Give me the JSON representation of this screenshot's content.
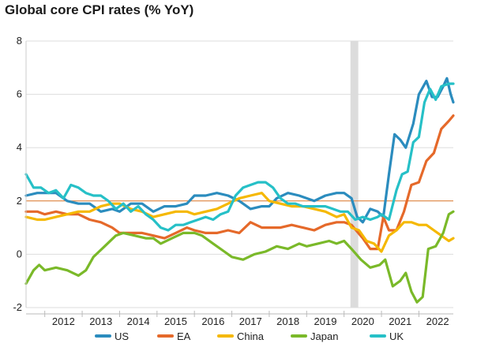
{
  "chart_data": {
    "type": "line",
    "title": "Global core CPI rates (% YoY)",
    "xlabel": "",
    "ylabel": "",
    "ylim": [
      -2,
      8
    ],
    "xlim": [
      2011.5,
      2022.92
    ],
    "y_ticks": [
      -2,
      0,
      2,
      4,
      6,
      8
    ],
    "x_tick_labels": [
      "2012",
      "2013",
      "2014",
      "2015",
      "2016",
      "2017",
      "2018",
      "2019",
      "2020",
      "2021",
      "2022"
    ],
    "reference_line": {
      "y": 2,
      "color": "#e07a2e"
    },
    "shaded_period": {
      "start": 2020.17,
      "end": 2020.38,
      "color": "#dcdcdc"
    },
    "legend_position": "bottom",
    "series": [
      {
        "name": "US",
        "color": "#2b8cbe",
        "points": [
          [
            2011.5,
            2.2
          ],
          [
            2011.8,
            2.3
          ],
          [
            2012.0,
            2.3
          ],
          [
            2012.3,
            2.3
          ],
          [
            2012.6,
            2.0
          ],
          [
            2012.9,
            1.9
          ],
          [
            2013.2,
            1.9
          ],
          [
            2013.5,
            1.6
          ],
          [
            2013.8,
            1.7
          ],
          [
            2014.0,
            1.6
          ],
          [
            2014.3,
            1.9
          ],
          [
            2014.6,
            1.9
          ],
          [
            2014.9,
            1.6
          ],
          [
            2015.2,
            1.8
          ],
          [
            2015.5,
            1.8
          ],
          [
            2015.8,
            1.9
          ],
          [
            2016.0,
            2.2
          ],
          [
            2016.3,
            2.2
          ],
          [
            2016.6,
            2.3
          ],
          [
            2016.9,
            2.2
          ],
          [
            2017.2,
            2.0
          ],
          [
            2017.5,
            1.7
          ],
          [
            2017.8,
            1.8
          ],
          [
            2018.0,
            1.8
          ],
          [
            2018.2,
            2.1
          ],
          [
            2018.5,
            2.3
          ],
          [
            2018.8,
            2.2
          ],
          [
            2019.0,
            2.1
          ],
          [
            2019.2,
            2.0
          ],
          [
            2019.5,
            2.2
          ],
          [
            2019.8,
            2.3
          ],
          [
            2020.0,
            2.3
          ],
          [
            2020.2,
            2.1
          ],
          [
            2020.35,
            1.4
          ],
          [
            2020.5,
            1.2
          ],
          [
            2020.7,
            1.7
          ],
          [
            2020.9,
            1.6
          ],
          [
            2021.05,
            1.4
          ],
          [
            2021.2,
            3.0
          ],
          [
            2021.35,
            4.5
          ],
          [
            2021.5,
            4.3
          ],
          [
            2021.65,
            4.0
          ],
          [
            2021.85,
            4.9
          ],
          [
            2022.0,
            6.0
          ],
          [
            2022.2,
            6.5
          ],
          [
            2022.35,
            5.9
          ],
          [
            2022.5,
            5.9
          ],
          [
            2022.65,
            6.3
          ],
          [
            2022.75,
            6.6
          ],
          [
            2022.85,
            6.0
          ],
          [
            2022.92,
            5.7
          ]
        ]
      },
      {
        "name": "EA",
        "color": "#e5692a",
        "points": [
          [
            2011.5,
            1.6
          ],
          [
            2011.8,
            1.6
          ],
          [
            2012.0,
            1.5
          ],
          [
            2012.3,
            1.6
          ],
          [
            2012.6,
            1.5
          ],
          [
            2012.9,
            1.5
          ],
          [
            2013.2,
            1.3
          ],
          [
            2013.5,
            1.2
          ],
          [
            2013.8,
            1.0
          ],
          [
            2014.0,
            0.8
          ],
          [
            2014.3,
            0.8
          ],
          [
            2014.6,
            0.8
          ],
          [
            2014.9,
            0.7
          ],
          [
            2015.2,
            0.6
          ],
          [
            2015.5,
            0.8
          ],
          [
            2015.8,
            1.0
          ],
          [
            2016.0,
            0.9
          ],
          [
            2016.3,
            0.8
          ],
          [
            2016.6,
            0.8
          ],
          [
            2016.9,
            0.9
          ],
          [
            2017.2,
            0.8
          ],
          [
            2017.5,
            1.2
          ],
          [
            2017.8,
            1.0
          ],
          [
            2018.0,
            1.0
          ],
          [
            2018.3,
            1.0
          ],
          [
            2018.6,
            1.1
          ],
          [
            2018.9,
            1.0
          ],
          [
            2019.2,
            0.9
          ],
          [
            2019.5,
            1.1
          ],
          [
            2019.8,
            1.2
          ],
          [
            2020.0,
            1.2
          ],
          [
            2020.2,
            1.1
          ],
          [
            2020.5,
            0.6
          ],
          [
            2020.7,
            0.2
          ],
          [
            2020.9,
            0.2
          ],
          [
            2021.05,
            1.4
          ],
          [
            2021.2,
            0.9
          ],
          [
            2021.4,
            0.9
          ],
          [
            2021.6,
            1.6
          ],
          [
            2021.8,
            2.6
          ],
          [
            2022.0,
            2.7
          ],
          [
            2022.2,
            3.5
          ],
          [
            2022.4,
            3.8
          ],
          [
            2022.6,
            4.7
          ],
          [
            2022.8,
            5.0
          ],
          [
            2022.92,
            5.2
          ]
        ]
      },
      {
        "name": "China",
        "color": "#f5b800",
        "points": [
          [
            2011.5,
            1.4
          ],
          [
            2011.8,
            1.3
          ],
          [
            2012.0,
            1.3
          ],
          [
            2012.3,
            1.4
          ],
          [
            2012.6,
            1.5
          ],
          [
            2012.9,
            1.6
          ],
          [
            2013.2,
            1.6
          ],
          [
            2013.5,
            1.8
          ],
          [
            2013.8,
            1.9
          ],
          [
            2014.0,
            1.9
          ],
          [
            2014.3,
            1.7
          ],
          [
            2014.6,
            1.6
          ],
          [
            2014.9,
            1.4
          ],
          [
            2015.2,
            1.5
          ],
          [
            2015.5,
            1.6
          ],
          [
            2015.8,
            1.6
          ],
          [
            2016.0,
            1.5
          ],
          [
            2016.3,
            1.6
          ],
          [
            2016.6,
            1.7
          ],
          [
            2016.9,
            1.9
          ],
          [
            2017.2,
            2.1
          ],
          [
            2017.5,
            2.2
          ],
          [
            2017.8,
            2.3
          ],
          [
            2018.0,
            2.0
          ],
          [
            2018.3,
            1.9
          ],
          [
            2018.6,
            1.8
          ],
          [
            2018.9,
            1.8
          ],
          [
            2019.2,
            1.7
          ],
          [
            2019.5,
            1.6
          ],
          [
            2019.8,
            1.4
          ],
          [
            2020.0,
            1.5
          ],
          [
            2020.2,
            1.0
          ],
          [
            2020.4,
            0.9
          ],
          [
            2020.6,
            0.5
          ],
          [
            2020.8,
            0.4
          ],
          [
            2021.0,
            0.1
          ],
          [
            2021.2,
            0.7
          ],
          [
            2021.4,
            0.9
          ],
          [
            2021.6,
            1.2
          ],
          [
            2021.8,
            1.2
          ],
          [
            2022.0,
            1.1
          ],
          [
            2022.2,
            1.1
          ],
          [
            2022.4,
            0.9
          ],
          [
            2022.6,
            0.7
          ],
          [
            2022.8,
            0.5
          ],
          [
            2022.92,
            0.6
          ]
        ]
      },
      {
        "name": "Japan",
        "color": "#7ab929",
        "points": [
          [
            2011.5,
            -1.1
          ],
          [
            2011.7,
            -0.6
          ],
          [
            2011.85,
            -0.4
          ],
          [
            2012.0,
            -0.6
          ],
          [
            2012.3,
            -0.5
          ],
          [
            2012.6,
            -0.6
          ],
          [
            2012.9,
            -0.8
          ],
          [
            2013.1,
            -0.6
          ],
          [
            2013.3,
            -0.1
          ],
          [
            2013.6,
            0.3
          ],
          [
            2013.9,
            0.7
          ],
          [
            2014.1,
            0.8
          ],
          [
            2014.4,
            0.7
          ],
          [
            2014.7,
            0.6
          ],
          [
            2014.9,
            0.6
          ],
          [
            2015.1,
            0.4
          ],
          [
            2015.4,
            0.6
          ],
          [
            2015.7,
            0.8
          ],
          [
            2016.0,
            0.8
          ],
          [
            2016.2,
            0.7
          ],
          [
            2016.5,
            0.4
          ],
          [
            2016.8,
            0.1
          ],
          [
            2017.0,
            -0.1
          ],
          [
            2017.3,
            -0.2
          ],
          [
            2017.6,
            0.0
          ],
          [
            2017.9,
            0.1
          ],
          [
            2018.2,
            0.3
          ],
          [
            2018.5,
            0.2
          ],
          [
            2018.8,
            0.4
          ],
          [
            2019.0,
            0.3
          ],
          [
            2019.3,
            0.4
          ],
          [
            2019.6,
            0.5
          ],
          [
            2019.8,
            0.4
          ],
          [
            2020.0,
            0.5
          ],
          [
            2020.2,
            0.2
          ],
          [
            2020.45,
            -0.2
          ],
          [
            2020.7,
            -0.5
          ],
          [
            2020.95,
            -0.4
          ],
          [
            2021.1,
            -0.2
          ],
          [
            2021.3,
            -1.2
          ],
          [
            2021.5,
            -1.0
          ],
          [
            2021.65,
            -0.7
          ],
          [
            2021.8,
            -1.4
          ],
          [
            2021.95,
            -1.8
          ],
          [
            2022.1,
            -1.6
          ],
          [
            2022.25,
            0.2
          ],
          [
            2022.45,
            0.3
          ],
          [
            2022.65,
            0.8
          ],
          [
            2022.8,
            1.5
          ],
          [
            2022.92,
            1.6
          ]
        ]
      },
      {
        "name": "UK",
        "color": "#26c0c7",
        "points": [
          [
            2011.5,
            3.0
          ],
          [
            2011.7,
            2.5
          ],
          [
            2011.9,
            2.5
          ],
          [
            2012.1,
            2.3
          ],
          [
            2012.3,
            2.4
          ],
          [
            2012.5,
            2.1
          ],
          [
            2012.7,
            2.6
          ],
          [
            2012.9,
            2.5
          ],
          [
            2013.1,
            2.3
          ],
          [
            2013.3,
            2.2
          ],
          [
            2013.5,
            2.2
          ],
          [
            2013.7,
            2.0
          ],
          [
            2013.9,
            1.7
          ],
          [
            2014.1,
            1.9
          ],
          [
            2014.3,
            1.6
          ],
          [
            2014.5,
            1.8
          ],
          [
            2014.7,
            1.5
          ],
          [
            2014.9,
            1.3
          ],
          [
            2015.1,
            1.0
          ],
          [
            2015.3,
            0.9
          ],
          [
            2015.5,
            1.1
          ],
          [
            2015.7,
            1.1
          ],
          [
            2015.9,
            1.2
          ],
          [
            2016.1,
            1.3
          ],
          [
            2016.3,
            1.4
          ],
          [
            2016.5,
            1.3
          ],
          [
            2016.7,
            1.5
          ],
          [
            2016.9,
            1.6
          ],
          [
            2017.1,
            2.2
          ],
          [
            2017.3,
            2.5
          ],
          [
            2017.5,
            2.6
          ],
          [
            2017.7,
            2.7
          ],
          [
            2017.9,
            2.7
          ],
          [
            2018.1,
            2.5
          ],
          [
            2018.3,
            2.1
          ],
          [
            2018.5,
            1.9
          ],
          [
            2018.7,
            1.9
          ],
          [
            2018.9,
            1.8
          ],
          [
            2019.1,
            1.8
          ],
          [
            2019.3,
            1.8
          ],
          [
            2019.5,
            1.8
          ],
          [
            2019.7,
            1.7
          ],
          [
            2019.9,
            1.6
          ],
          [
            2020.1,
            1.6
          ],
          [
            2020.3,
            1.3
          ],
          [
            2020.5,
            1.4
          ],
          [
            2020.7,
            1.3
          ],
          [
            2020.9,
            1.4
          ],
          [
            2021.0,
            1.5
          ],
          [
            2021.2,
            1.3
          ],
          [
            2021.4,
            2.4
          ],
          [
            2021.55,
            3.0
          ],
          [
            2021.7,
            3.1
          ],
          [
            2021.85,
            4.2
          ],
          [
            2022.0,
            4.4
          ],
          [
            2022.15,
            5.7
          ],
          [
            2022.3,
            6.2
          ],
          [
            2022.45,
            5.8
          ],
          [
            2022.6,
            6.3
          ],
          [
            2022.8,
            6.4
          ],
          [
            2022.92,
            6.4
          ]
        ]
      }
    ]
  }
}
